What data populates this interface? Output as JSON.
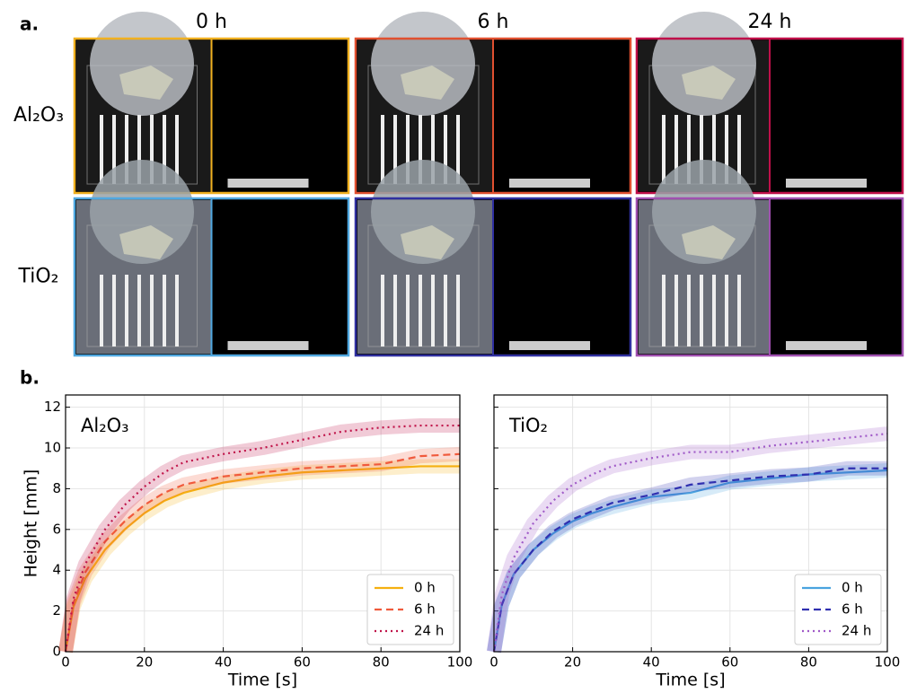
{
  "panel_labels": [
    "a.",
    "b."
  ],
  "panel_a": {
    "columns": [
      "0 h",
      "6 h",
      "24 h"
    ],
    "rows": [
      "Al₂O₃",
      "TiO₂"
    ]
  },
  "chart_data": [
    {
      "type": "line",
      "annotation": "Al₂O₃",
      "x_label": "Time [s]",
      "y_label": "Height [mm]",
      "x": [
        0,
        2,
        5,
        10,
        15,
        20,
        25,
        30,
        40,
        50,
        60,
        70,
        80,
        90,
        100
      ],
      "xlim": [
        0,
        100
      ],
      "xticks": [
        0,
        20,
        40,
        60,
        80,
        100
      ],
      "ylim": [
        0,
        12.6
      ],
      "yticks": [
        0,
        2,
        4,
        6,
        8,
        10,
        12
      ],
      "grid": true,
      "legend": "lower right",
      "series": [
        {
          "name": "0 h",
          "color": "#f5b010",
          "style": "solid",
          "values": [
            0,
            2.2,
            3.6,
            5.0,
            6.0,
            6.8,
            7.4,
            7.8,
            8.3,
            8.6,
            8.8,
            8.9,
            9.0,
            9.1,
            9.1
          ]
        },
        {
          "name": "6 h",
          "color": "#f05a3c",
          "style": "dashed",
          "values": [
            0,
            2.4,
            3.9,
            5.4,
            6.4,
            7.2,
            7.8,
            8.2,
            8.6,
            8.8,
            9.0,
            9.1,
            9.2,
            9.6,
            9.7
          ]
        },
        {
          "name": "24 h",
          "color": "#c0144a",
          "style": "dotted",
          "values": [
            0,
            2.6,
            4.3,
            6.0,
            7.2,
            8.1,
            8.8,
            9.3,
            9.7,
            10.0,
            10.4,
            10.8,
            11.0,
            11.1,
            11.1
          ]
        }
      ]
    },
    {
      "type": "line",
      "annotation": "TiO₂",
      "x_label": "Time [s]",
      "sharey": true,
      "x": [
        0,
        2,
        5,
        10,
        15,
        20,
        25,
        30,
        40,
        50,
        60,
        70,
        80,
        90,
        100
      ],
      "xlim": [
        0,
        100
      ],
      "xticks": [
        0,
        20,
        40,
        60,
        80,
        100
      ],
      "grid": true,
      "legend": "lower right",
      "series": [
        {
          "name": "0 h",
          "color": "#4aa3df",
          "style": "solid",
          "values": [
            0,
            2.3,
            3.8,
            5.0,
            5.8,
            6.4,
            6.8,
            7.1,
            7.6,
            7.8,
            8.3,
            8.5,
            8.7,
            8.8,
            8.9
          ]
        },
        {
          "name": "6 h",
          "color": "#3030b0",
          "style": "dashed",
          "values": [
            0,
            2.3,
            3.8,
            5.0,
            5.9,
            6.5,
            6.9,
            7.3,
            7.7,
            8.2,
            8.4,
            8.6,
            8.7,
            9.0,
            9.0
          ]
        },
        {
          "name": "24 h",
          "color": "#a05ac8",
          "style": "dotted",
          "values": [
            0,
            2.8,
            4.6,
            6.3,
            7.4,
            8.2,
            8.7,
            9.1,
            9.5,
            9.8,
            9.8,
            10.1,
            10.3,
            10.5,
            10.7
          ]
        }
      ]
    }
  ]
}
